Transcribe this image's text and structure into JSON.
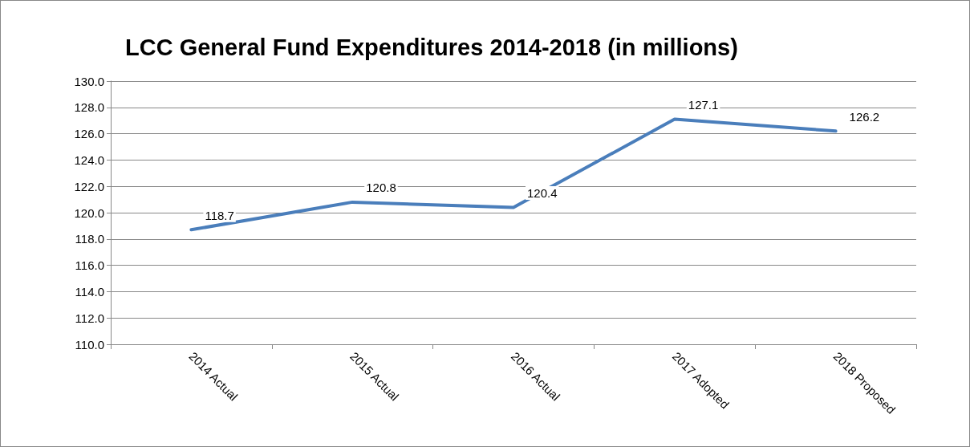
{
  "chart_data": {
    "type": "line",
    "title": "LCC General Fund Expenditures 2014-2018 (in millions)",
    "categories": [
      "2014 Actual",
      "2015 Actual",
      "2016 Actual",
      "2017 Adopted",
      "2018 Proposed"
    ],
    "series": [
      {
        "color": "#4a7ebb",
        "values": [
          118.7,
          120.8,
          120.4,
          127.1,
          126.2
        ]
      }
    ],
    "ylim": [
      110,
      130
    ],
    "yticks": [
      {
        "value": 110,
        "label": "110.0"
      },
      {
        "value": 112,
        "label": "112.0"
      },
      {
        "value": 114,
        "label": "114.0"
      },
      {
        "value": 116,
        "label": "116.0"
      },
      {
        "value": 118,
        "label": "118.0"
      },
      {
        "value": 120,
        "label": "120.0"
      },
      {
        "value": 122,
        "label": "122.0"
      },
      {
        "value": 124,
        "label": "124.0"
      },
      {
        "value": 126,
        "label": "126.0"
      },
      {
        "value": 128,
        "label": "128.0"
      },
      {
        "value": 130,
        "label": "130.0"
      }
    ],
    "grid": "y",
    "marker": "none",
    "line_style": "solid",
    "data_labels": true
  }
}
